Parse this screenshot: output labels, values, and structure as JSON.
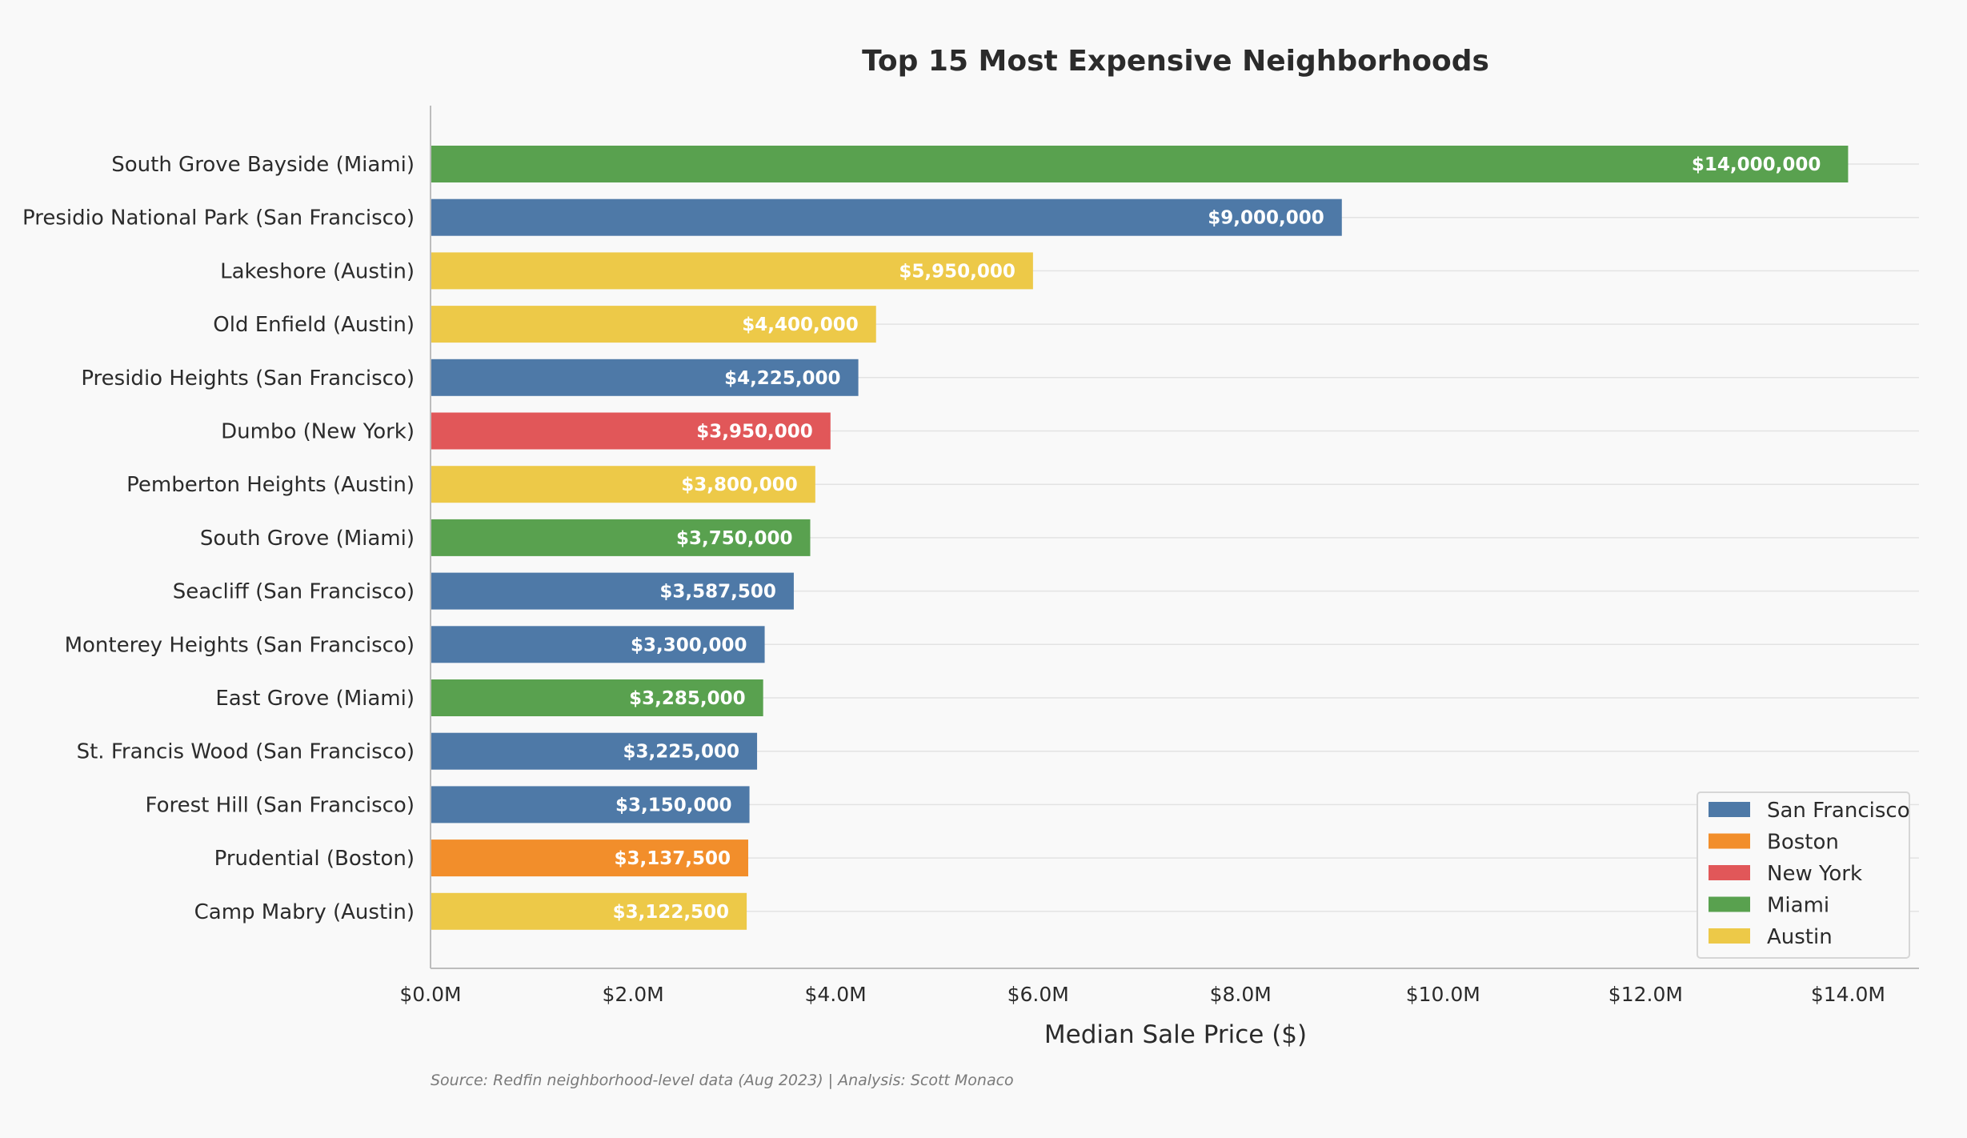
{
  "chart_data": {
    "type": "bar",
    "orientation": "horizontal",
    "title": "Top 15 Most Expensive Neighborhoods",
    "xlabel": "Median Sale Price ($)",
    "ylabel": "",
    "xlim": [
      0,
      14700000
    ],
    "xticks": [
      0,
      2000000,
      4000000,
      6000000,
      8000000,
      10000000,
      12000000,
      14000000
    ],
    "xtick_labels": [
      "$0.0M",
      "$2.0M",
      "$4.0M",
      "$6.0M",
      "$8.0M",
      "$10.0M",
      "$12.0M",
      "$14.0M"
    ],
    "grid": "horizontal gridlines on",
    "legend_position": "bottom-right",
    "categories": [
      "South Grove Bayside (Miami)",
      "Presidio National Park (San Francisco)",
      "Lakeshore (Austin)",
      "Old Enfield (Austin)",
      "Presidio Heights (San Francisco)",
      "Dumbo (New York)",
      "Pemberton Heights (Austin)",
      "South Grove (Miami)",
      "Seacliff (San Francisco)",
      "Monterey Heights (San Francisco)",
      "East Grove (Miami)",
      "St. Francis Wood (San Francisco)",
      "Forest Hill (San Francisco)",
      "Prudential (Boston)",
      "Camp Mabry (Austin)"
    ],
    "values": [
      14000000,
      9000000,
      5950000,
      4400000,
      4225000,
      3950000,
      3800000,
      3750000,
      3587500,
      3300000,
      3285000,
      3225000,
      3150000,
      3137500,
      3122500
    ],
    "value_labels": [
      "$14,000,000",
      "$9,000,000",
      "$5,950,000",
      "$4,400,000",
      "$4,225,000",
      "$3,950,000",
      "$3,800,000",
      "$3,750,000",
      "$3,587,500",
      "$3,300,000",
      "$3,285,000",
      "$3,225,000",
      "$3,150,000",
      "$3,137,500",
      "$3,122,500"
    ],
    "bar_cities": [
      "Miami",
      "San Francisco",
      "Austin",
      "Austin",
      "San Francisco",
      "New York",
      "Austin",
      "Miami",
      "San Francisco",
      "San Francisco",
      "Miami",
      "San Francisco",
      "San Francisco",
      "Boston",
      "Austin"
    ],
    "legend": [
      {
        "name": "San Francisco",
        "color": "#4e79a7"
      },
      {
        "name": "Boston",
        "color": "#f28e2b"
      },
      {
        "name": "New York",
        "color": "#e15759"
      },
      {
        "name": "Miami",
        "color": "#59a14f"
      },
      {
        "name": "Austin",
        "color": "#edc948"
      }
    ],
    "source": "Source: Redfin neighborhood-level data (Aug 2023) | Analysis: Scott Monaco"
  }
}
